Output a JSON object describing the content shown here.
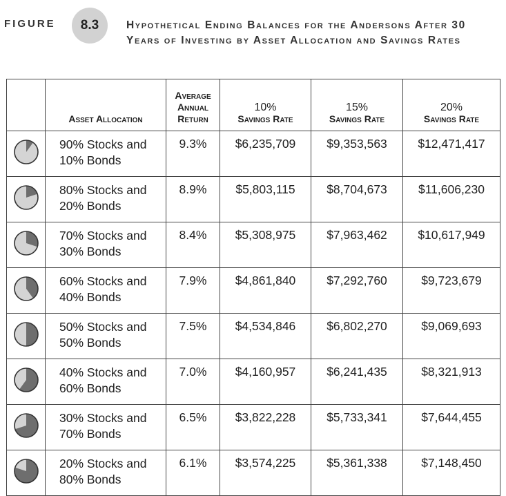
{
  "figure": {
    "label": "FIGURE",
    "number": "8.3",
    "title": "Hypothetical Ending Balances for the Andersons After 30 Years of Investing by Asset Allocation and Savings Rates"
  },
  "table": {
    "headers": {
      "allocation": "Asset Allocation",
      "return_line1": "Average",
      "return_line2": "Annual",
      "return_line3": "Return",
      "rate10_line1": "10%",
      "rate10_line2": "Savings Rate",
      "rate15_line1": "15%",
      "rate15_line2": "Savings Rate",
      "rate20_line1": "20%",
      "rate20_line2": "Savings Rate"
    },
    "rows": [
      {
        "stocks_pct": 90,
        "line1": "90% Stocks and",
        "line2": "10% Bonds",
        "return": "9.3%",
        "r10": "$6,235,709",
        "r15": "$9,353,563",
        "r20": "$12,471,417"
      },
      {
        "stocks_pct": 80,
        "line1": "80% Stocks and",
        "line2": "20% Bonds",
        "return": "8.9%",
        "r10": "$5,803,115",
        "r15": "$8,704,673",
        "r20": "$11,606,230"
      },
      {
        "stocks_pct": 70,
        "line1": "70% Stocks and",
        "line2": "30% Bonds",
        "return": "8.4%",
        "r10": "$5,308,975",
        "r15": "$7,963,462",
        "r20": "$10,617,949"
      },
      {
        "stocks_pct": 60,
        "line1": "60% Stocks and",
        "line2": "40% Bonds",
        "return": "7.9%",
        "r10": "$4,861,840",
        "r15": "$7,292,760",
        "r20": "$9,723,679"
      },
      {
        "stocks_pct": 50,
        "line1": "50% Stocks and",
        "line2": "50% Bonds",
        "return": "7.5%",
        "r10": "$4,534,846",
        "r15": "$6,802,270",
        "r20": "$9,069,693"
      },
      {
        "stocks_pct": 40,
        "line1": "40% Stocks and",
        "line2": "60% Bonds",
        "return": "7.0%",
        "r10": "$4,160,957",
        "r15": "$6,241,435",
        "r20": "$8,321,913"
      },
      {
        "stocks_pct": 30,
        "line1": "30% Stocks and",
        "line2": "70% Bonds",
        "return": "6.5%",
        "r10": "$3,822,228",
        "r15": "$5,733,341",
        "r20": "$7,644,455"
      },
      {
        "stocks_pct": 20,
        "line1": "20% Stocks and",
        "line2": "80% Bonds",
        "return": "6.1%",
        "r10": "$3,574,225",
        "r15": "$5,361,338",
        "r20": "$7,148,450"
      }
    ]
  },
  "colors": {
    "stocks_slice": "#d4d4d4",
    "bonds_slice": "#6e6e6e",
    "badge": "#d2d2d2"
  }
}
